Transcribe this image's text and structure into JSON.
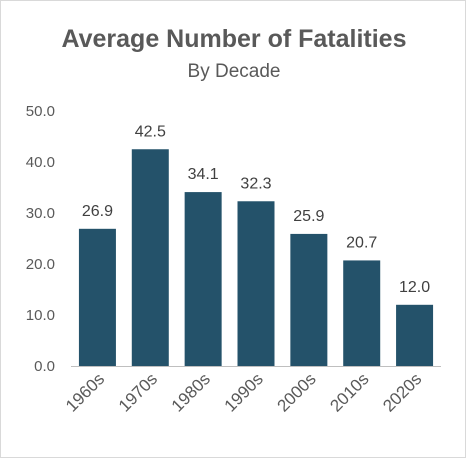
{
  "chart_data": {
    "type": "bar",
    "title": "Average Number of Fatalities",
    "subtitle": "By Decade",
    "categories": [
      "1960s",
      "1970s",
      "1980s",
      "1990s",
      "2000s",
      "2010s",
      "2020s"
    ],
    "values": [
      26.9,
      42.5,
      34.1,
      32.3,
      25.9,
      20.7,
      12.0
    ],
    "data_labels": [
      "26.9",
      "42.5",
      "34.1",
      "32.3",
      "25.9",
      "20.7",
      "12.0"
    ],
    "ylim": [
      0,
      50
    ],
    "yticks": [
      0,
      10,
      20,
      30,
      40,
      50
    ],
    "ytick_labels": [
      "0.0",
      "10.0",
      "20.0",
      "30.0",
      "40.0",
      "50.0"
    ],
    "grid": false,
    "legend": "none",
    "colors": {
      "bar": "#24526a",
      "text": "#595959",
      "axis": "#bfbfbf"
    }
  }
}
